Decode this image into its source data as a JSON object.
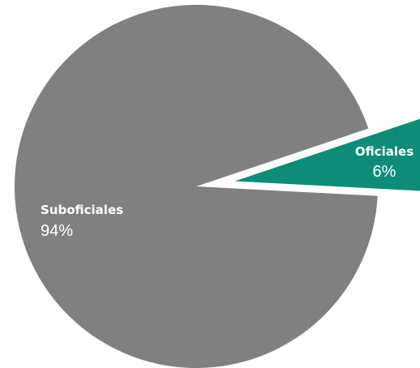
{
  "chart_data": {
    "type": "pie",
    "title": "",
    "slices": [
      {
        "label": "Suboficiales",
        "value": 94,
        "value_label": "94%",
        "color": "#808080"
      },
      {
        "label": "Oficiales",
        "value": 6,
        "value_label": "6%",
        "color": "#0e8c77",
        "exploded": true
      }
    ],
    "legend": "none"
  }
}
